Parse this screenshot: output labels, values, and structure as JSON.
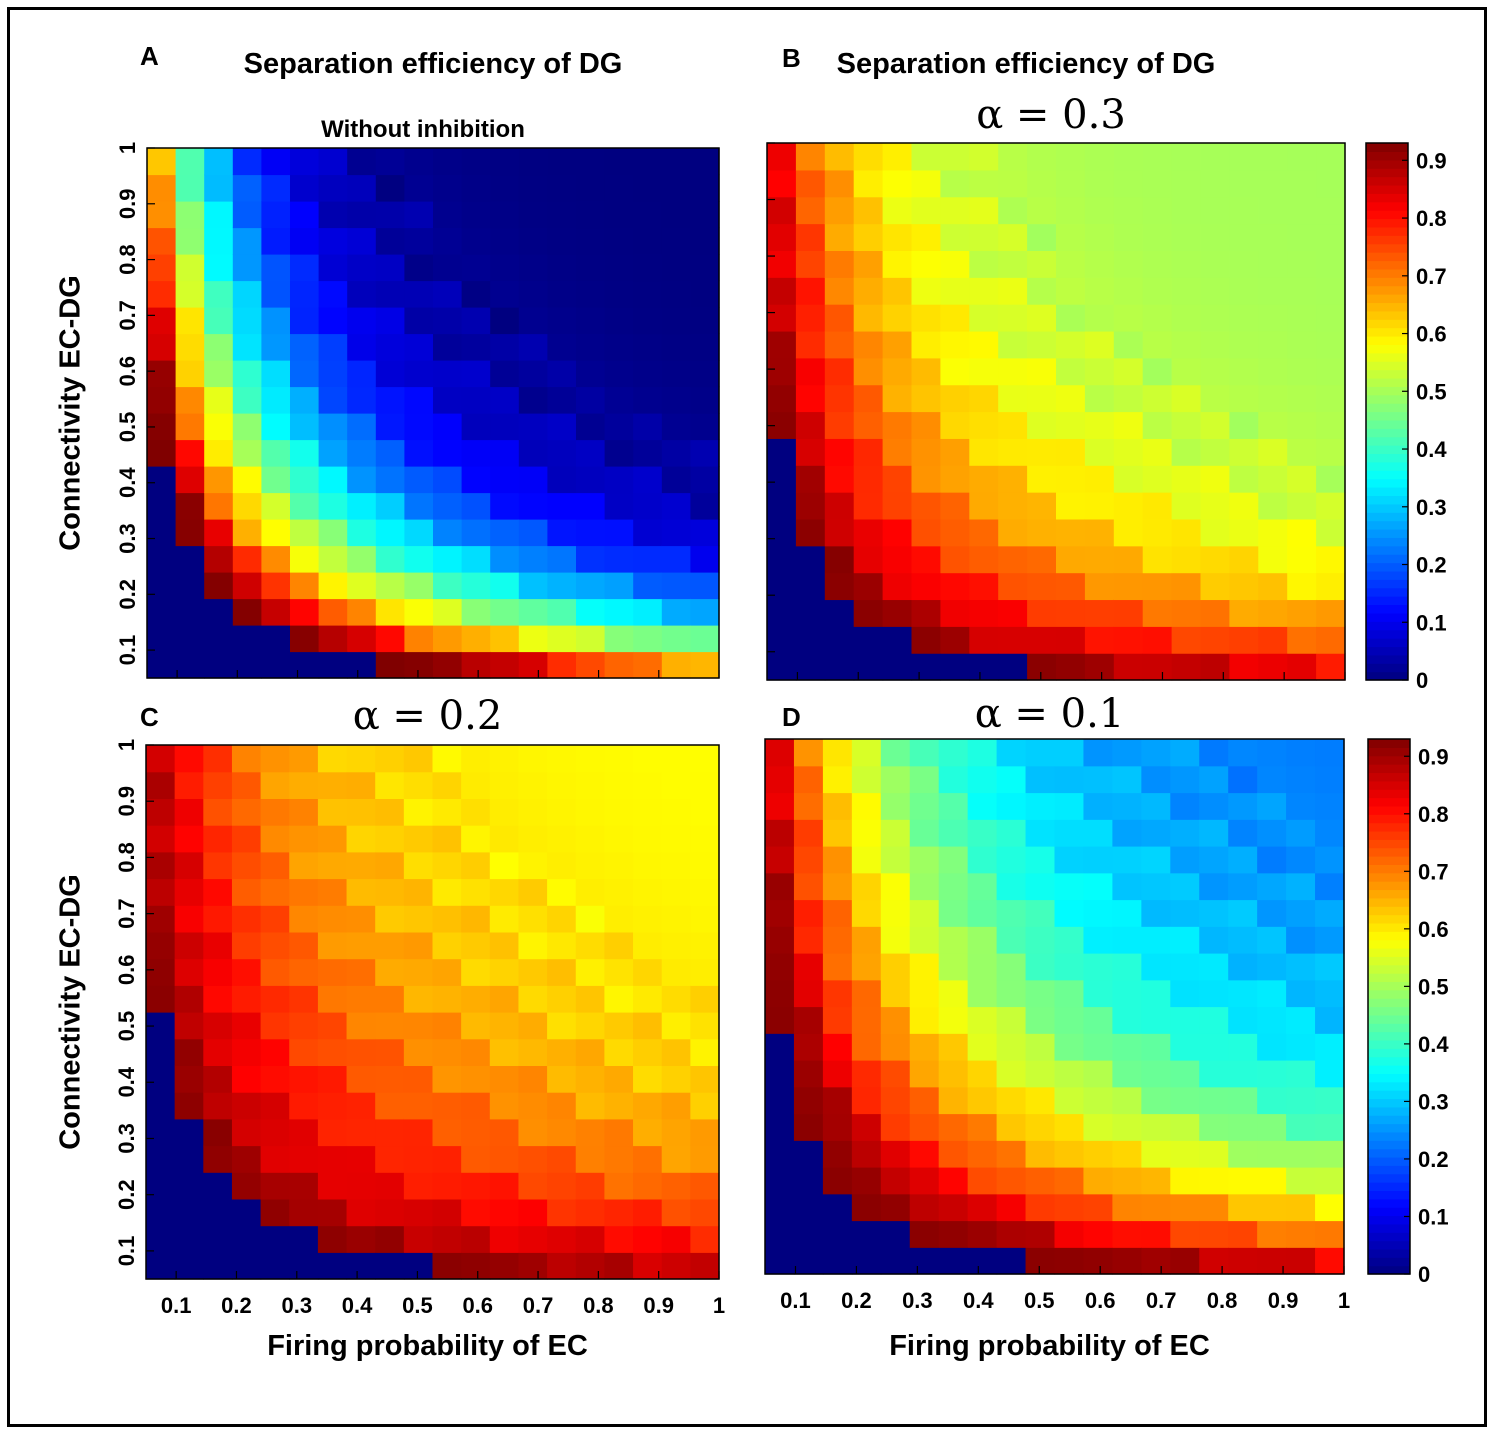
{
  "chart_data": [
    {
      "panel": "A",
      "type": "heatmap",
      "title": "Separation efficiency of DG",
      "subtitle": "Without inhibition",
      "xlabel": "",
      "ylabel": "Connectivity EC-DG",
      "x_ticks": [
        "0.1",
        "0.2",
        "0.3",
        "0.4",
        "0.5",
        "0.6",
        "0.7",
        "0.8",
        "0.9",
        "1"
      ],
      "y_ticks": [
        "0.1",
        "0.2",
        "0.3",
        "0.4",
        "0.5",
        "0.6",
        "0.7",
        "0.8",
        "0.9",
        "1"
      ],
      "x_range": [
        0.05,
        1.0
      ],
      "y_range": [
        0.05,
        1.0
      ],
      "colorbar": false,
      "zlim": [
        0,
        0.93
      ],
      "model": {
        "c": 0.033,
        "w": 0.06,
        "tail": 0.0,
        "base": 0.0,
        "low": 0.85,
        "high_peak": 0.93,
        "high_slope": 1.5,
        "high_min": 0.52
      }
    },
    {
      "panel": "B",
      "type": "heatmap",
      "title": "Separation efficiency of DG",
      "subtitle": "α = 0.3",
      "xlabel": "",
      "ylabel": "",
      "x_ticks": [
        "0.1",
        "0.2",
        "0.3",
        "0.4",
        "0.5",
        "0.6",
        "0.7",
        "0.8",
        "0.9",
        "1"
      ],
      "y_ticks": [
        "0.1",
        "0.2",
        "0.3",
        "0.4",
        "0.5",
        "0.6",
        "0.7",
        "0.8",
        "0.9",
        "1"
      ],
      "x_range": [
        0.05,
        1.0
      ],
      "y_range": [
        0.05,
        1.0
      ],
      "colorbar": true,
      "colorbar_ticks": [
        "0",
        "0.1",
        "0.2",
        "0.3",
        "0.4",
        "0.5",
        "0.6",
        "0.7",
        "0.8",
        "0.9"
      ],
      "zlim": [
        0,
        0.93
      ],
      "model": {
        "c": 0.035,
        "w": 0.07,
        "tail": 0.0,
        "base": 0.5,
        "low": 0.88,
        "high_peak": 0.92,
        "high_slope": 0.8,
        "high_min": 0.7
      }
    },
    {
      "panel": "C",
      "type": "heatmap",
      "title": "",
      "subtitle": "α = 0.2",
      "xlabel": "Firing probability of EC",
      "ylabel": "Connectivity EC-DG",
      "x_ticks": [
        "0.1",
        "0.2",
        "0.3",
        "0.4",
        "0.5",
        "0.6",
        "0.7",
        "0.8",
        "0.9",
        "1"
      ],
      "y_ticks": [
        "0.1",
        "0.2",
        "0.3",
        "0.4",
        "0.5",
        "0.6",
        "0.7",
        "0.8",
        "0.9",
        "1"
      ],
      "x_range": [
        0.05,
        1.0
      ],
      "y_range": [
        0.05,
        1.0
      ],
      "colorbar": false,
      "zlim": [
        0,
        0.93
      ],
      "model": {
        "c": 0.038,
        "w": 0.1,
        "tail": 0.0,
        "base": 0.58,
        "low": 0.88,
        "high_peak": 0.92,
        "high_slope": 0.7,
        "high_min": 0.7
      }
    },
    {
      "panel": "D",
      "type": "heatmap",
      "title": "",
      "subtitle": "α = 0.1",
      "xlabel": "Firing probability of EC",
      "ylabel": "",
      "x_ticks": [
        "0.1",
        "0.2",
        "0.3",
        "0.4",
        "0.5",
        "0.6",
        "0.7",
        "0.8",
        "0.9",
        "1"
      ],
      "y_ticks": [],
      "x_range": [
        0.05,
        1.0
      ],
      "y_range": [
        0.05,
        1.0
      ],
      "colorbar": true,
      "colorbar_ticks": [
        "0",
        "0.1",
        "0.2",
        "0.3",
        "0.4",
        "0.5",
        "0.6",
        "0.7",
        "0.8",
        "0.9"
      ],
      "zlim": [
        0,
        0.93
      ],
      "model": {
        "c": 0.035,
        "w": 0.12,
        "tail": 0.0,
        "base": 0.22,
        "low": 0.88,
        "high_peak": 0.92,
        "high_slope": 1.0,
        "high_min": 0.5
      }
    }
  ]
}
